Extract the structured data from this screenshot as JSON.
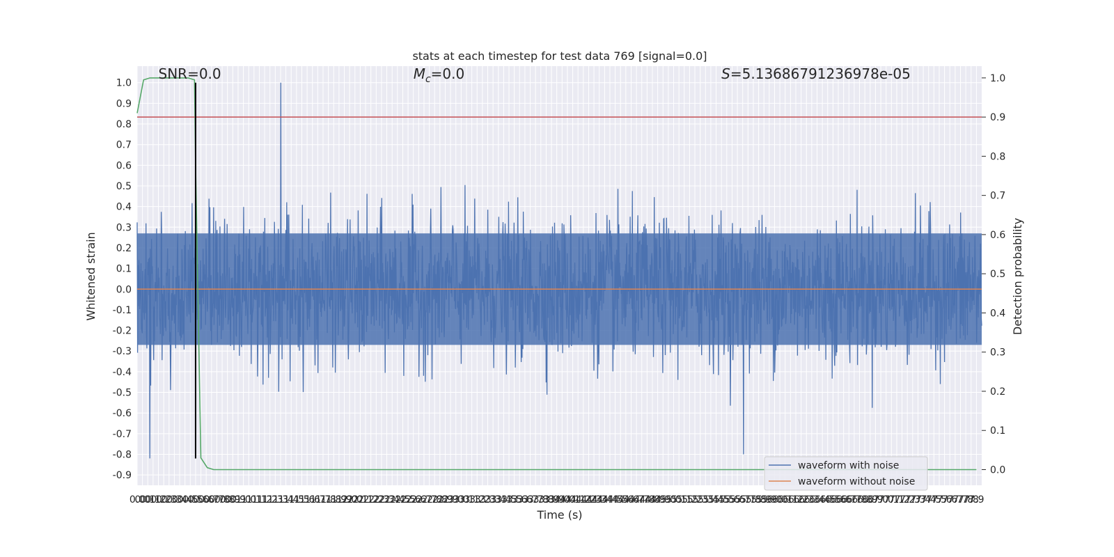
{
  "chart_data": {
    "type": "line",
    "title": "stats at each timestep for test data 769 [signal=0.0]",
    "xlabel": "Time (s)",
    "ylabel": "Whitened strain",
    "y2label": "Detection probability",
    "xlim": [
      0.0,
      7.95
    ],
    "ylim": [
      -0.95,
      1.08
    ],
    "y2lim": [
      -0.04,
      1.03
    ],
    "x_ticks": [
      0.0,
      0.05,
      0.1,
      0.15,
      0.2,
      0.25,
      0.3,
      0.35,
      0.4,
      0.45,
      0.5,
      0.55,
      0.6,
      0.65,
      0.7,
      0.75,
      0.8,
      0.85,
      0.9,
      0.95,
      1.0,
      1.05,
      1.1,
      1.15,
      1.2,
      1.25,
      1.3,
      1.35,
      1.4,
      1.45,
      1.5,
      1.55,
      1.6,
      1.65,
      1.7,
      1.75,
      1.8,
      1.85,
      1.9,
      1.95,
      2.0,
      2.05,
      2.1,
      2.15,
      2.2,
      2.25,
      2.3,
      2.35,
      2.4,
      2.45,
      2.5,
      2.55,
      2.6,
      2.65,
      2.7,
      2.75,
      2.8,
      2.85,
      2.9,
      2.95,
      3.0,
      3.05,
      3.1,
      3.15,
      3.2,
      3.25,
      3.3,
      3.35,
      3.4,
      3.45,
      3.5,
      3.55,
      3.6,
      3.65,
      3.7,
      3.75,
      3.8,
      3.85,
      3.9,
      3.95,
      4.0,
      4.05,
      4.1,
      4.15,
      4.2,
      4.25,
      4.3,
      4.35,
      4.4,
      4.45,
      4.5,
      4.55,
      4.6,
      4.65,
      4.7,
      4.75,
      4.8,
      4.85,
      4.9,
      4.95,
      5.0,
      5.05,
      5.1,
      5.15,
      5.2,
      5.25,
      5.3,
      5.35,
      5.4,
      5.45,
      5.5,
      5.55,
      5.6,
      5.65,
      5.7,
      5.75,
      5.8,
      5.85,
      5.9,
      5.95,
      6.0,
      6.05,
      6.1,
      6.15,
      6.2,
      6.25,
      6.3,
      6.35,
      6.4,
      6.45,
      6.5,
      6.55,
      6.6,
      6.65,
      6.7,
      6.75,
      6.8,
      6.85,
      6.9,
      6.95,
      7.0,
      7.05,
      7.1,
      7.15,
      7.2,
      7.25,
      7.3,
      7.35,
      7.4,
      7.45,
      7.5,
      7.55,
      7.6,
      7.65,
      7.7,
      7.75,
      7.8,
      7.85,
      7.9
    ],
    "x_tick_labels": [
      "0.0",
      "0.0",
      "0.1",
      "0.1",
      "0.2",
      "0.2",
      "0.3",
      "0.3",
      "0.4",
      "0.4",
      "0.5",
      "0.5",
      "0.6",
      "0.6",
      "0.7",
      "0.7",
      "0.8",
      "0.8",
      "0.9",
      "0.9",
      "1.0",
      "1.0",
      "1.1",
      "1.1",
      "1.2",
      "1.2",
      "1.3",
      "1.3",
      "1.4",
      "1.4",
      "1.5",
      "1.5",
      "1.6",
      "1.6",
      "1.7",
      "1.7",
      "1.8",
      "1.8",
      "1.9",
      "1.9",
      "2.0",
      "2.0",
      "2.1",
      "2.1",
      "2.2",
      "2.2",
      "2.3",
      "2.3",
      "2.4",
      "2.4",
      "2.5",
      "2.5",
      "2.6",
      "2.6",
      "2.7",
      "2.7",
      "2.8",
      "2.8",
      "2.9",
      "2.9",
      "3.0",
      "3.0",
      "3.1",
      "3.1",
      "3.2",
      "3.2",
      "3.3",
      "3.3",
      "3.4",
      "3.4",
      "3.5",
      "3.5",
      "3.6",
      "3.6",
      "3.7",
      "3.7",
      "3.8",
      "3.8",
      "3.9",
      "3.9",
      "4.0",
      "4.0",
      "4.1",
      "4.1",
      "4.2",
      "4.2",
      "4.3",
      "4.3",
      "4.4",
      "4.4",
      "4.5",
      "4.5",
      "4.6",
      "4.6",
      "4.7",
      "4.7",
      "4.8",
      "4.8",
      "4.9",
      "4.9",
      "5.0",
      "5.0",
      "5.1",
      "5.1",
      "5.2",
      "5.2",
      "5.3",
      "5.3",
      "5.4",
      "5.4",
      "5.5",
      "5.5",
      "5.6",
      "5.6",
      "5.7",
      "5.7",
      "5.8",
      "5.8",
      "5.9",
      "5.9",
      "6.0",
      "6.0",
      "6.1",
      "6.1",
      "6.2",
      "6.2",
      "6.3",
      "6.3",
      "6.4",
      "6.4",
      "6.5",
      "6.5",
      "6.6",
      "6.6",
      "6.7",
      "6.7",
      "6.8",
      "6.8",
      "6.9",
      "6.9",
      "7.0",
      "7.0",
      "7.1",
      "7.1",
      "7.2",
      "7.2",
      "7.3",
      "7.3",
      "7.4",
      "7.4",
      "7.5",
      "7.5",
      "7.6",
      "7.6",
      "7.7",
      "7.7",
      "7.8",
      "7.8",
      "7.9"
    ],
    "y_ticks": [
      -0.9,
      -0.8,
      -0.7,
      -0.6,
      -0.5,
      -0.4,
      -0.3,
      -0.2,
      -0.1,
      0.0,
      0.1,
      0.2,
      0.3,
      0.4,
      0.5,
      0.6,
      0.7,
      0.8,
      0.9,
      1.0
    ],
    "y2_ticks": [
      0.0,
      0.1,
      0.2,
      0.3,
      0.4,
      0.5,
      0.6,
      0.7,
      0.8,
      0.9,
      1.0
    ],
    "grid": true,
    "annotations": [
      {
        "text": "SNR=0.0",
        "x": 0.2,
        "y": 1.02
      },
      {
        "prefix": "M",
        "sub": "c",
        "rest": "=0.0",
        "x": 2.6,
        "y": 1.02
      },
      {
        "prefix": "S",
        "rest": "=5.13686791236978e-05",
        "x": 5.5,
        "y": 1.02
      }
    ],
    "series": [
      {
        "name": "waveform with noise",
        "axis": "left",
        "color": "#4c72b0",
        "kind": "noise",
        "n_samples": 2000,
        "typical_upper": 0.45,
        "typical_lower": -0.42,
        "peak_max": 1.0,
        "peak_min": -0.82
      },
      {
        "name": "waveform without noise",
        "axis": "left",
        "color": "#dd8452",
        "x": [
          0.0,
          7.95
        ],
        "y": [
          0.0,
          0.0
        ]
      },
      {
        "name": "detection probability",
        "axis": "right",
        "color": "#55a868",
        "x": [
          0.0,
          0.06,
          0.12,
          0.18,
          0.24,
          0.3,
          0.36,
          0.42,
          0.48,
          0.54,
          0.55,
          0.6,
          0.66,
          0.72,
          0.78,
          0.84,
          0.9,
          1.0,
          2.0,
          3.0,
          4.0,
          5.0,
          6.0,
          7.0,
          7.9
        ],
        "y": [
          0.91,
          0.995,
          1.0,
          1.0,
          1.0,
          1.0,
          1.0,
          1.0,
          1.0,
          0.995,
          0.78,
          0.03,
          0.005,
          0.0,
          0.0,
          0.0,
          0.0,
          0.0,
          0.0,
          0.0,
          0.0,
          0.0,
          0.0,
          0.0,
          0.0
        ]
      },
      {
        "name": "threshold",
        "axis": "right",
        "color": "#c44e52",
        "x": [
          0.0,
          7.95
        ],
        "y": [
          0.9,
          0.9
        ]
      }
    ],
    "marker_line": {
      "x": 0.55,
      "y_from": -0.82,
      "y_to": 1.0,
      "color": "#000000"
    },
    "legend": {
      "position": "bottom-right",
      "entries": [
        "waveform with noise",
        "waveform without noise"
      ]
    }
  }
}
